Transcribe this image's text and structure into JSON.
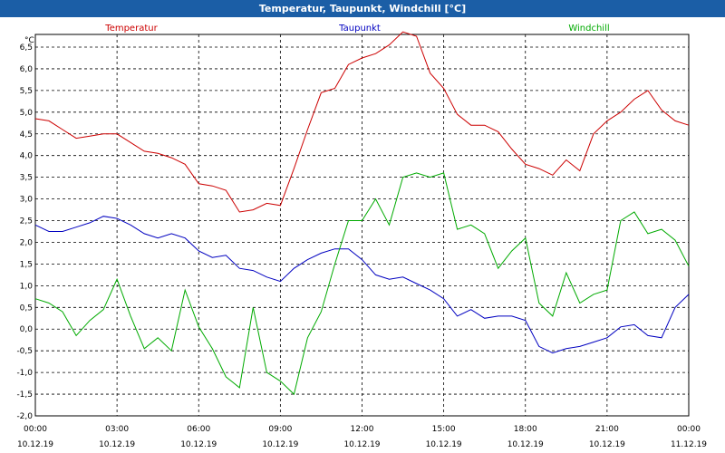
{
  "window": {
    "title": "Temperatur, Taupunkt, Windchill [°C]"
  },
  "chart_data": {
    "type": "line",
    "title": "Temperatur, Taupunkt, Windchill [°C]",
    "ylabel": "°C",
    "ylim": [
      -2.0,
      7.0
    ],
    "xlim": [
      0,
      24
    ],
    "grid": true,
    "legend_position": "top",
    "y_ticks": [
      "6,5",
      "6,0",
      "5,5",
      "5,0",
      "4,5",
      "4,0",
      "3,5",
      "3,0",
      "2,5",
      "2,0",
      "1,5",
      "1,0",
      "0,5",
      "0,0",
      "-0,5",
      "-1,0",
      "-1,5",
      "-2,0"
    ],
    "x_ticks": [
      {
        "time": "00:00",
        "date": "10.12.19"
      },
      {
        "time": "03:00",
        "date": "10.12.19"
      },
      {
        "time": "06:00",
        "date": "10.12.19"
      },
      {
        "time": "09:00",
        "date": "10.12.19"
      },
      {
        "time": "12:00",
        "date": "10.12.19"
      },
      {
        "time": "15:00",
        "date": "10.12.19"
      },
      {
        "time": "18:00",
        "date": "10.12.19"
      },
      {
        "time": "21:00",
        "date": "10.12.19"
      },
      {
        "time": "00:00",
        "date": "11.12.19"
      }
    ],
    "series": [
      {
        "name": "Temperatur",
        "color": "#cc0000",
        "x": [
          0,
          0.5,
          1,
          1.5,
          2,
          2.5,
          3,
          3.5,
          4,
          4.5,
          5,
          5.5,
          6,
          6.5,
          7,
          7.5,
          8,
          8.5,
          9,
          9.5,
          10,
          10.5,
          11,
          11.5,
          12,
          12.5,
          13,
          13.5,
          14,
          14.5,
          15,
          15.5,
          16,
          16.5,
          17,
          17.5,
          18,
          18.5,
          19,
          19.5,
          20,
          20.5,
          21,
          21.5,
          22,
          22.5,
          23,
          23.5,
          24
        ],
        "values": [
          4.85,
          4.8,
          4.6,
          4.4,
          4.45,
          4.5,
          4.5,
          4.3,
          4.1,
          4.05,
          3.95,
          3.8,
          3.35,
          3.3,
          3.2,
          2.7,
          2.75,
          2.9,
          2.85,
          3.7,
          4.6,
          5.45,
          5.55,
          6.1,
          6.25,
          6.35,
          6.55,
          6.85,
          6.75,
          5.9,
          5.55,
          4.95,
          4.7,
          4.7,
          4.55,
          4.15,
          3.8,
          3.7,
          3.55,
          3.9,
          3.65,
          4.5,
          4.8,
          5.0,
          5.3,
          5.5,
          5.05,
          4.8,
          4.7
        ]
      },
      {
        "name": "Taupunkt",
        "color": "#0000c0",
        "x": [
          0,
          0.5,
          1,
          1.5,
          2,
          2.5,
          3,
          3.5,
          4,
          4.5,
          5,
          5.5,
          6,
          6.5,
          7,
          7.5,
          8,
          8.5,
          9,
          9.5,
          10,
          10.5,
          11,
          11.5,
          12,
          12.5,
          13,
          13.5,
          14,
          14.5,
          15,
          15.5,
          16,
          16.5,
          17,
          17.5,
          18,
          18.5,
          19,
          19.5,
          20,
          20.5,
          21,
          21.5,
          22,
          22.5,
          23,
          23.5,
          24
        ],
        "values": [
          2.4,
          2.25,
          2.25,
          2.35,
          2.45,
          2.6,
          2.55,
          2.4,
          2.2,
          2.1,
          2.2,
          2.1,
          1.8,
          1.65,
          1.7,
          1.4,
          1.35,
          1.2,
          1.1,
          1.4,
          1.6,
          1.75,
          1.85,
          1.85,
          1.6,
          1.25,
          1.15,
          1.2,
          1.05,
          0.9,
          0.7,
          0.3,
          0.45,
          0.25,
          0.3,
          0.3,
          0.2,
          -0.4,
          -0.55,
          -0.45,
          -0.4,
          -0.3,
          -0.2,
          0.05,
          0.1,
          -0.15,
          -0.2,
          0.5,
          0.8
        ]
      },
      {
        "name": "Windchill",
        "color": "#00aa00",
        "x": [
          0,
          0.5,
          1,
          1.5,
          2,
          2.5,
          3,
          3.5,
          4,
          4.5,
          5,
          5.5,
          6,
          6.5,
          7,
          7.5,
          8,
          8.5,
          9,
          9.5,
          10,
          10.5,
          11,
          11.5,
          12,
          12.5,
          13,
          13.5,
          14,
          14.5,
          15,
          15.5,
          16,
          16.5,
          17,
          17.5,
          18,
          18.5,
          19,
          19.5,
          20,
          20.5,
          21,
          21.5,
          22,
          22.5,
          23,
          23.5,
          24
        ],
        "values": [
          0.7,
          0.6,
          0.4,
          -0.15,
          0.2,
          0.45,
          1.15,
          0.3,
          -0.45,
          -0.2,
          -0.5,
          0.9,
          0.05,
          -0.45,
          -1.1,
          -1.35,
          0.5,
          -1.0,
          -1.2,
          -1.5,
          -0.2,
          0.4,
          1.5,
          2.5,
          2.5,
          3.0,
          2.4,
          3.5,
          3.6,
          3.5,
          3.6,
          2.3,
          2.4,
          2.2,
          1.4,
          1.8,
          2.1,
          0.6,
          0.3,
          1.3,
          0.6,
          0.8,
          0.9,
          2.5,
          2.7,
          2.2,
          2.3,
          2.05,
          1.45
        ]
      }
    ]
  }
}
